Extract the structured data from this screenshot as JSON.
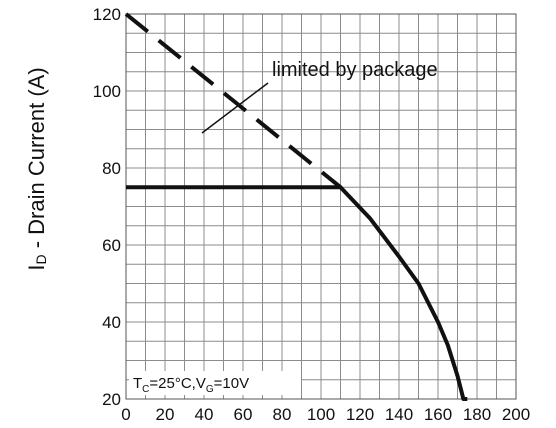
{
  "chart_data": {
    "type": "line",
    "title": "",
    "xlabel": "",
    "ylabel": {
      "symbol": "I",
      "subscript": "D",
      "text": " - Drain Current (A)"
    },
    "xlim": [
      0,
      200
    ],
    "ylim": [
      20,
      120
    ],
    "x_ticks": [
      0,
      20,
      40,
      60,
      80,
      100,
      120,
      140,
      160,
      180,
      200
    ],
    "y_ticks": [
      20,
      40,
      60,
      80,
      100,
      120
    ],
    "grid": true,
    "series": [
      {
        "style": "dashed",
        "x": [
          0,
          110
        ],
        "y": [
          120,
          75
        ]
      },
      {
        "style": "solid",
        "x": [
          0,
          25,
          50,
          75,
          100,
          110,
          125,
          140,
          150,
          160,
          165,
          170,
          173,
          175
        ],
        "y": [
          75,
          75,
          75,
          75,
          75,
          75,
          67,
          57,
          50,
          40,
          34,
          26,
          20,
          20
        ]
      }
    ],
    "annotations": [
      {
        "text": "limited by package"
      }
    ],
    "conditions": {
      "tc_symbol": "T",
      "tc_sub": "C",
      "tc_value": "=25°C,",
      "vg_symbol": "V",
      "vg_sub": "G",
      "vg_value": "=10V"
    }
  }
}
